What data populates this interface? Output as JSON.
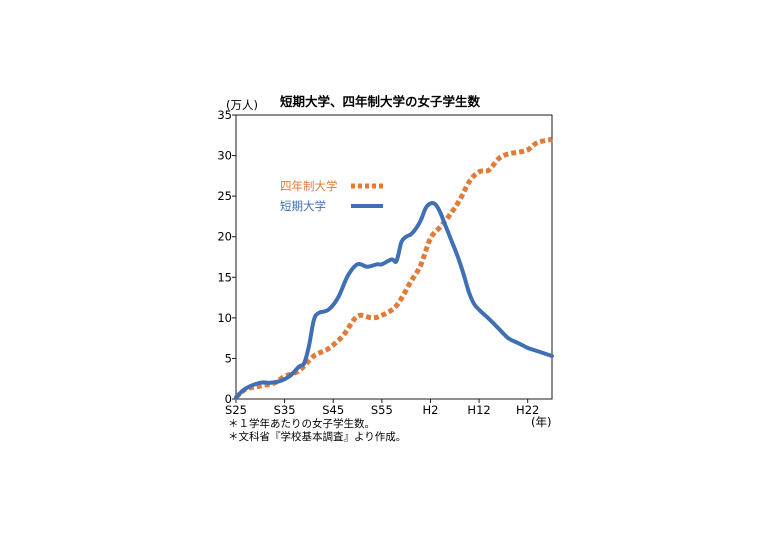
{
  "chart_data": {
    "type": "line",
    "title": "短期大学、四年制大学の女子学生数",
    "y_unit": "(万人)",
    "x_unit": "(年)",
    "ylim": [
      0,
      35
    ],
    "y_ticks": [
      0,
      5,
      10,
      15,
      20,
      25,
      30,
      35
    ],
    "x_range": [
      1950,
      2015
    ],
    "x_ticks": [
      {
        "year": 1950,
        "label": "S25"
      },
      {
        "year": 1960,
        "label": "S35"
      },
      {
        "year": 1970,
        "label": "S45"
      },
      {
        "year": 1980,
        "label": "S55"
      },
      {
        "year": 1990,
        "label": "H2"
      },
      {
        "year": 2000,
        "label": "H12"
      },
      {
        "year": 2010,
        "label": "H22"
      }
    ],
    "grid": false,
    "legend_placement": "upper-left",
    "series": [
      {
        "name": "四年制大学",
        "color": "#e07b39",
        "style": "dotted",
        "x": [
          1950,
          1952,
          1955,
          1958,
          1960,
          1963,
          1966,
          1969,
          1972,
          1975,
          1978,
          1980,
          1983,
          1986,
          1988,
          1990,
          1992,
          1994,
          1996,
          1998,
          2000,
          2002,
          2004,
          2006,
          2008,
          2010,
          2012,
          2015
        ],
        "y": [
          0.2,
          1.2,
          1.6,
          2.0,
          2.8,
          3.5,
          5.3,
          6.2,
          7.8,
          10.2,
          10.0,
          10.3,
          11.5,
          14.5,
          16.5,
          19.8,
          21.2,
          22.7,
          24.5,
          26.8,
          28.0,
          28.2,
          29.6,
          30.2,
          30.4,
          30.7,
          31.6,
          32.0
        ]
      },
      {
        "name": "短期大学",
        "color": "#3f6fb5",
        "style": "solid",
        "x": [
          1950,
          1952,
          1955,
          1957,
          1959,
          1961,
          1963,
          1964,
          1965,
          1966,
          1967,
          1969,
          1971,
          1973,
          1975,
          1977,
          1979,
          1980,
          1982,
          1983,
          1984,
          1985,
          1986,
          1987,
          1988,
          1989,
          1990,
          1991,
          1992,
          1993,
          1994,
          1995,
          1996,
          1997,
          1998,
          1999,
          2000,
          2002,
          2004,
          2006,
          2008,
          2010,
          2012,
          2015
        ],
        "y": [
          0.2,
          1.3,
          2.0,
          2.0,
          2.2,
          2.8,
          4.0,
          4.4,
          6.5,
          9.7,
          10.6,
          11.0,
          12.5,
          15.2,
          16.6,
          16.3,
          16.6,
          16.6,
          17.2,
          17.0,
          19.3,
          20.0,
          20.3,
          21.0,
          22.0,
          23.5,
          24.1,
          24.0,
          23.0,
          21.5,
          20.0,
          18.5,
          16.9,
          15.0,
          13.0,
          11.7,
          11.0,
          9.9,
          8.7,
          7.5,
          6.9,
          6.3,
          5.9,
          5.3
        ]
      }
    ],
    "notes": [
      "＊１学年あたりの女子学生数。",
      "＊文科省『学校基本調査』より作成。"
    ]
  }
}
